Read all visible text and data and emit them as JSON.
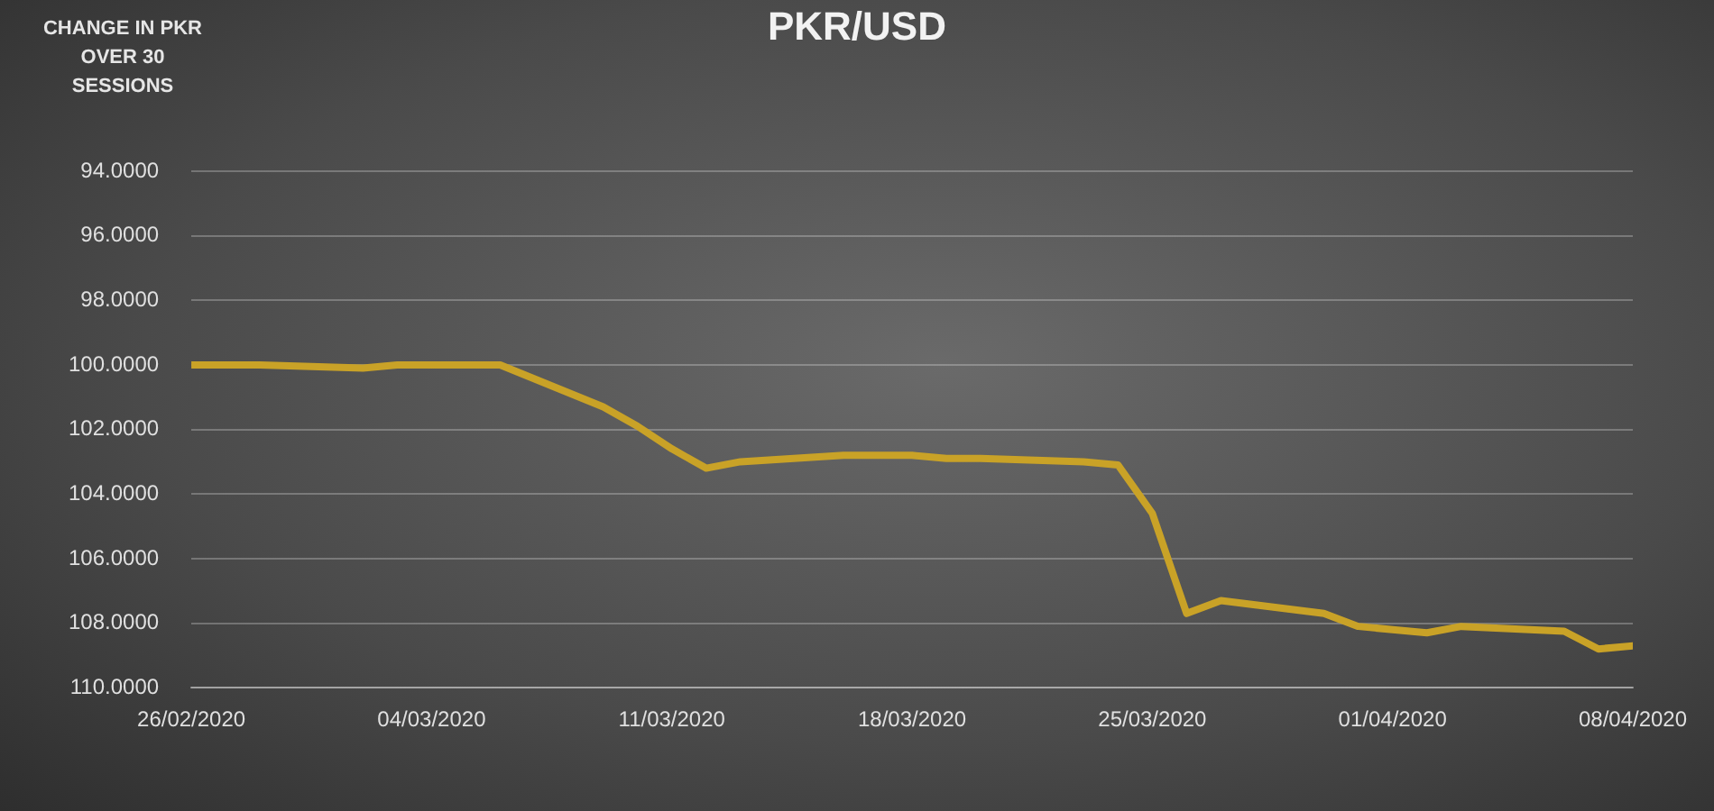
{
  "chart_data": {
    "type": "line",
    "title": "PKR/USD",
    "ylabel": "CHANGE IN PKR OVER 30 SESSIONS",
    "x": [
      "2020-02-26",
      "2020-02-27",
      "2020-02-28",
      "2020-03-02",
      "2020-03-03",
      "2020-03-04",
      "2020-03-05",
      "2020-03-06",
      "2020-03-09",
      "2020-03-10",
      "2020-03-11",
      "2020-03-12",
      "2020-03-13",
      "2020-03-16",
      "2020-03-17",
      "2020-03-18",
      "2020-03-19",
      "2020-03-20",
      "2020-03-23",
      "2020-03-24",
      "2020-03-25",
      "2020-03-26",
      "2020-03-27",
      "2020-03-30",
      "2020-03-31",
      "2020-04-01",
      "2020-04-02",
      "2020-04-03",
      "2020-04-06",
      "2020-04-07",
      "2020-04-08"
    ],
    "series": [
      {
        "color": "#c9a227",
        "values": [
          100.0,
          100.0,
          100.0,
          100.1,
          100.0,
          100.0,
          100.0,
          100.0,
          101.3,
          101.9,
          102.6,
          103.2,
          103.0,
          102.8,
          102.8,
          102.8,
          102.9,
          102.9,
          103.0,
          103.1,
          104.6,
          107.7,
          107.3,
          107.7,
          108.1,
          108.2,
          108.3,
          108.1,
          108.25,
          108.8,
          108.7
        ]
      }
    ],
    "ylim": [
      110,
      94
    ],
    "yticks": [
      {
        "value": 94,
        "label": "94.0000"
      },
      {
        "value": 96,
        "label": "96.0000"
      },
      {
        "value": 98,
        "label": "98.0000"
      },
      {
        "value": 100,
        "label": "100.0000"
      },
      {
        "value": 102,
        "label": "102.0000"
      },
      {
        "value": 104,
        "label": "104.0000"
      },
      {
        "value": 106,
        "label": "106.0000"
      },
      {
        "value": 108,
        "label": "108.0000"
      },
      {
        "value": 110,
        "label": "110.0000"
      }
    ],
    "xlim": [
      "2020-02-26",
      "2020-04-08"
    ],
    "xticks": [
      {
        "value": "2020-02-26",
        "label": "26/02/2020"
      },
      {
        "value": "2020-03-04",
        "label": "04/03/2020"
      },
      {
        "value": "2020-03-11",
        "label": "11/03/2020"
      },
      {
        "value": "2020-03-18",
        "label": "18/03/2020"
      },
      {
        "value": "2020-03-25",
        "label": "25/03/2020"
      },
      {
        "value": "2020-04-01",
        "label": "01/04/2020"
      },
      {
        "value": "2020-04-08",
        "label": "08/04/2020"
      }
    ],
    "grid": "y",
    "legend": false,
    "marker": "none",
    "line_style": "solid"
  }
}
